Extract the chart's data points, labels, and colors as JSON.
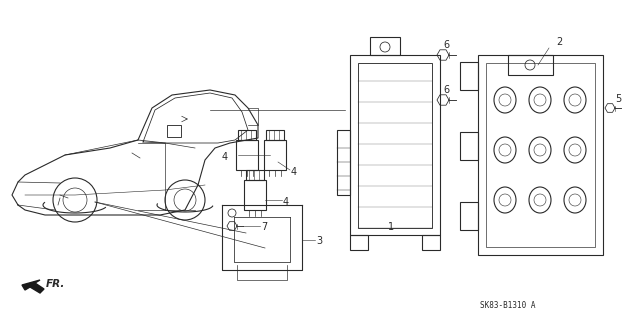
{
  "bg_color": "#ffffff",
  "lc": "#2a2a2a",
  "lw": 0.8,
  "fs": 7,
  "fig_w": 6.4,
  "fig_h": 3.19,
  "dpi": 100,
  "diagram_code": "SK83-B1310 A",
  "xlim": [
    0,
    640
  ],
  "ylim": [
    0,
    319
  ]
}
